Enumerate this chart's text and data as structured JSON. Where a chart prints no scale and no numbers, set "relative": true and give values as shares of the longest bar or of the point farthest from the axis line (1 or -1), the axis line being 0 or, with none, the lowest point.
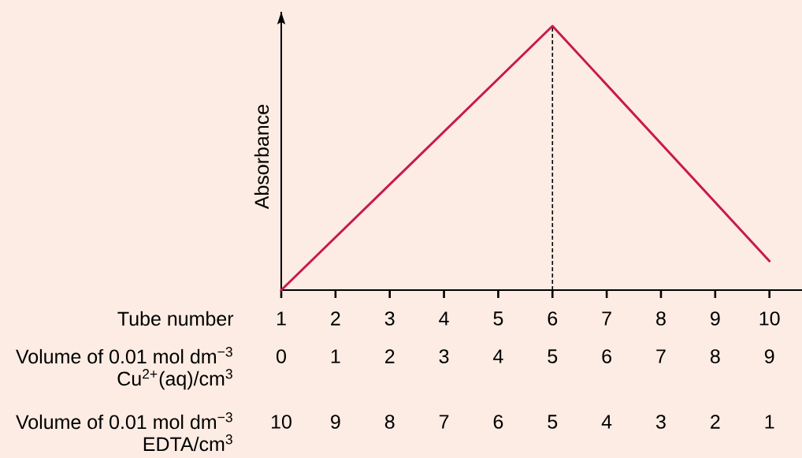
{
  "chart_data": {
    "type": "line",
    "xlabel": "Tube number",
    "ylabel": "Absorbance",
    "relative": true,
    "x": [
      1,
      6,
      10
    ],
    "values": [
      0,
      1,
      0.11
    ],
    "color": "#c8194f",
    "line_style": "solid",
    "marker": "none",
    "xlim": [
      1,
      10.6
    ],
    "xticks": [
      1,
      2,
      3,
      4,
      5,
      6,
      7,
      8,
      9,
      10
    ],
    "x2label": "Volume of 0.01 mol dm$^{−3}$ Cu$^{2+}$(aq)/cm$^{3}$",
    "x2lim": [
      0,
      9.6
    ],
    "x2ticks": [
      0,
      1,
      2,
      3,
      4,
      5,
      6,
      7,
      8,
      9
    ],
    "annotations": [
      "Volume of 0.01 mol dm$^{−3}$ EDTA/cm$^{3}$",
      "10",
      "9",
      "8",
      "7",
      "6",
      "5",
      "4",
      "3",
      "2",
      "1"
    ],
    "ref_lines": [
      {
        "axis": "x",
        "value": 6,
        "color": "#000000",
        "line_style": "dashed"
      }
    ]
  }
}
